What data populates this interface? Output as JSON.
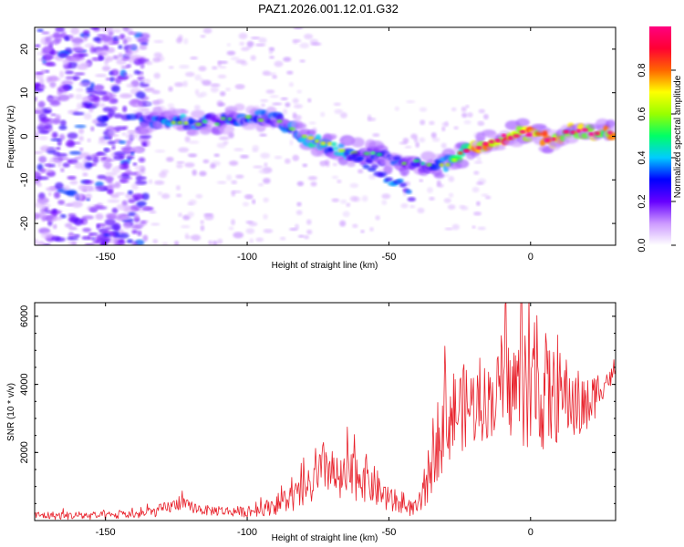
{
  "title": "PAZ1.2026.001.12.01.G32",
  "chart_data": [
    {
      "type": "heatmap",
      "name": "spectrogram",
      "xlabel": "Height of straight line (km)",
      "ylabel": "Frequency (Hz)",
      "xlim": [
        -175,
        30
      ],
      "ylim": [
        -25,
        25
      ],
      "xticks": [
        -150,
        -100,
        -50,
        0
      ],
      "yticks": [
        -20,
        -10,
        0,
        10,
        20
      ],
      "colorbar": {
        "label": "Normalized spectral amplitude",
        "range": [
          0,
          1
        ],
        "ticks": [
          "0.0",
          "0.2",
          "0.4",
          "0.6",
          "0.8"
        ],
        "colors": [
          "#ffffff",
          "#cc99ff",
          "#6600ff",
          "#0000ff",
          "#00ccff",
          "#00ff66",
          "#99ff00",
          "#ffff00",
          "#ff6600",
          "#ff0033",
          "#ff0080"
        ]
      },
      "ridge": {
        "x": [
          -137,
          -125,
          -110,
          -100,
          -90,
          -82,
          -76,
          -68,
          -60,
          -52,
          -46,
          -40,
          -34,
          -28,
          -22,
          -15,
          -8,
          -3,
          2,
          8,
          14,
          20,
          26,
          30
        ],
        "frequency": [
          3.5,
          3.2,
          3.4,
          4.5,
          4,
          0.5,
          -1,
          -3,
          -3.5,
          -5,
          -6,
          -6,
          -7,
          -6,
          -3,
          -1.5,
          0,
          1,
          0,
          -1,
          1.5,
          1,
          0.5,
          1
        ],
        "amplitude": [
          0.35,
          0.45,
          0.3,
          0.4,
          0.35,
          0.4,
          0.5,
          0.45,
          0.35,
          0.3,
          0.35,
          0.3,
          0.35,
          0.45,
          0.75,
          0.85,
          0.9,
          0.95,
          0.9,
          0.85,
          0.8,
          0.85,
          0.8,
          0.8
        ]
      },
      "branch": {
        "x": [
          -65,
          -58,
          -52,
          -46,
          -42
        ],
        "frequency": [
          -4,
          -6,
          -9,
          -11,
          -14
        ],
        "amplitude": [
          0.3,
          0.3,
          0.35,
          0.4,
          0.3
        ]
      }
    },
    {
      "type": "line",
      "name": "snr",
      "xlabel": "Height of straight line (km)",
      "ylabel": "SNR (10 * v/v)",
      "xlim": [
        -175,
        30
      ],
      "ylim": [
        0,
        6400
      ],
      "xticks": [
        -150,
        -100,
        -50,
        0
      ],
      "yticks": [
        2000,
        4000,
        6000
      ],
      "color": "#e8202a",
      "envelope": {
        "x": [
          -175,
          -150,
          -135,
          -128,
          -124,
          -115,
          -100,
          -92,
          -86,
          -80,
          -75,
          -72,
          -68,
          -60,
          -55,
          -50,
          -45,
          -40,
          -37,
          -34,
          -30,
          -25,
          -20,
          -15,
          -10,
          -5,
          0,
          5,
          8,
          12,
          16,
          20,
          25,
          30
        ],
        "mean": [
          150,
          140,
          200,
          380,
          500,
          300,
          250,
          400,
          600,
          800,
          1200,
          1700,
          1100,
          1400,
          1000,
          600,
          400,
          350,
          900,
          2200,
          3000,
          3300,
          3400,
          3500,
          3800,
          3900,
          3700,
          3800,
          3600,
          3700,
          3400,
          3300,
          4000,
          4300
        ],
        "spread": [
          120,
          120,
          140,
          200,
          200,
          150,
          150,
          250,
          400,
          500,
          700,
          900,
          700,
          800,
          600,
          400,
          250,
          250,
          600,
          1200,
          1400,
          1300,
          1200,
          1100,
          1300,
          1600,
          1700,
          1800,
          1500,
          1200,
          1100,
          900,
          500,
          200
        ]
      }
    }
  ]
}
